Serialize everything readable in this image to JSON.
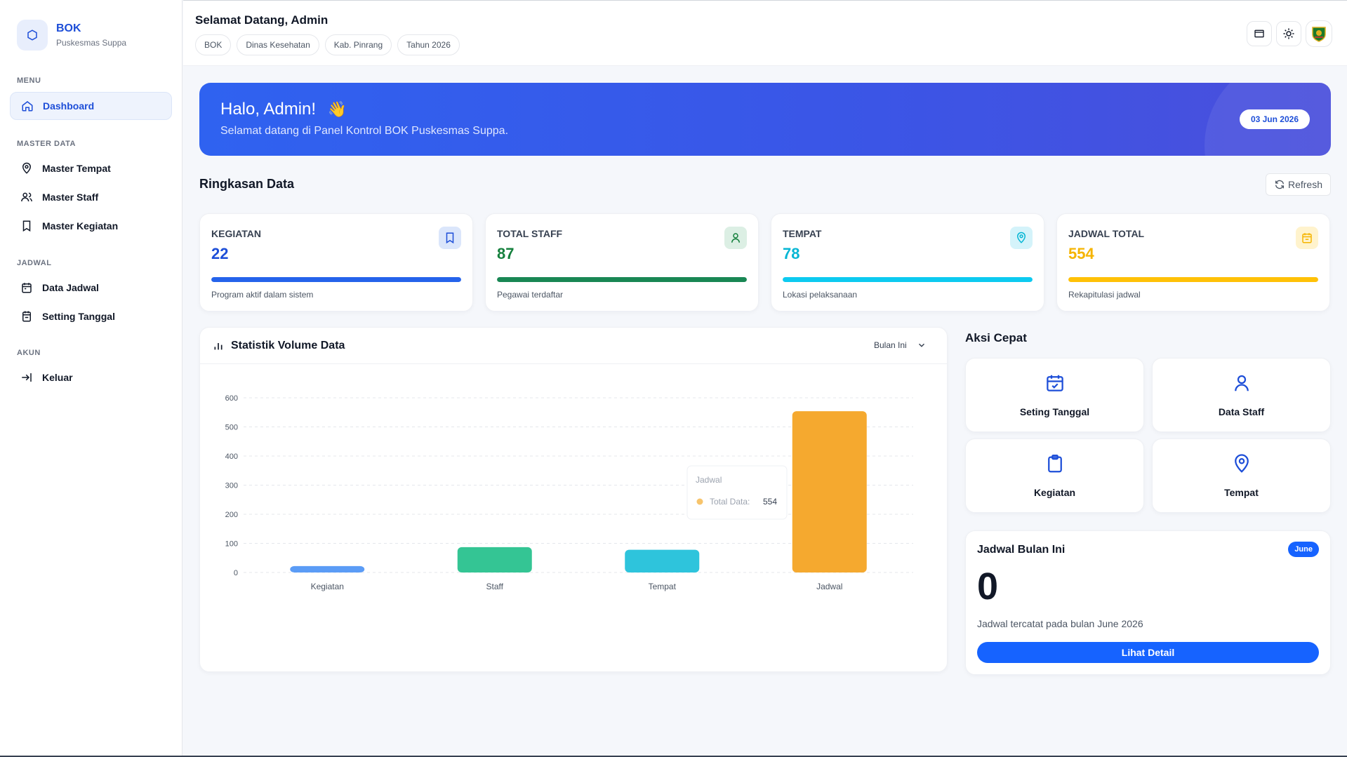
{
  "brand": {
    "title": "BOK",
    "subtitle": "Puskesmas Suppa"
  },
  "sidebar": {
    "sections": {
      "menu": "MENU",
      "master": "MASTER DATA",
      "jadwal": "JADWAL",
      "akun": "AKUN"
    },
    "items": [
      {
        "label": "Dashboard",
        "icon": "home-icon",
        "active": true
      },
      {
        "label": "Master Tempat",
        "icon": "map-pin-icon"
      },
      {
        "label": "Master Staff",
        "icon": "users-icon"
      },
      {
        "label": "Master Kegiatan",
        "icon": "bookmark-icon"
      },
      {
        "label": "Data Jadwal",
        "icon": "calendar-icon"
      },
      {
        "label": "Setting Tanggal",
        "icon": "calendar-check-icon"
      },
      {
        "label": "Keluar",
        "icon": "logout-icon"
      }
    ]
  },
  "header": {
    "greeting": "Selamat Datang, Admin",
    "chips": [
      "BOK",
      "Dinas Kesehatan",
      "Kab. Pinrang",
      "Tahun 2026"
    ]
  },
  "hero": {
    "title": "Halo, Admin!",
    "emoji": "👋",
    "subtitle": "Selamat datang di Panel Kontrol BOK Puskesmas Suppa.",
    "date": "03 Jun 2026",
    "colors": [
      "#2f62f0",
      "#4a4fdc"
    ]
  },
  "summary": {
    "title": "Ringkasan Data",
    "refresh_label": "Refresh",
    "cards": [
      {
        "label": "KEGIATAN",
        "value": "22",
        "desc": "Program aktif dalam sistem",
        "color": "#1d4ed8",
        "bar": "#2563eb",
        "icon_bg": "#dbe6fb",
        "icon": "bookmark-icon",
        "fill": 1.0
      },
      {
        "label": "TOTAL STAFF",
        "value": "87",
        "desc": "Pegawai terdaftar",
        "color": "#15803d",
        "bar": "#198754",
        "icon_bg": "#dcefe4",
        "icon": "user-icon",
        "fill": 1.0
      },
      {
        "label": "TEMPAT",
        "value": "78",
        "desc": "Lokasi pelaksanaan",
        "color": "#06b6d4",
        "bar": "#0dcaf0",
        "icon_bg": "#d4f3fa",
        "icon": "map-pin-icon",
        "fill": 1.0
      },
      {
        "label": "JADWAL TOTAL",
        "value": "554",
        "desc": "Rekapitulasi jadwal",
        "color": "#f5b400",
        "bar": "#ffc107",
        "icon_bg": "#fff3cd",
        "icon": "calendar-icon",
        "fill": 1.0
      }
    ]
  },
  "chart_panel": {
    "title": "Statistik Volume Data",
    "period": "Bulan Ini",
    "tooltip": {
      "title": "Jadwal",
      "label": "Total Data:",
      "value": "554"
    }
  },
  "chart_data": {
    "type": "bar",
    "categories": [
      "Kegiatan",
      "Staff",
      "Tempat",
      "Jadwal"
    ],
    "values": [
      22,
      87,
      78,
      554
    ],
    "colors": [
      "#5b9cf6",
      "#34c594",
      "#2ec4dc",
      "#f5a92f"
    ],
    "ylim": [
      0,
      600
    ],
    "yticks": [
      0,
      100,
      200,
      300,
      400,
      500,
      600
    ],
    "grid": true
  },
  "quick_actions": {
    "title": "Aksi Cepat",
    "items": [
      {
        "label": "Seting Tanggal",
        "icon": "calendar-check-icon"
      },
      {
        "label": "Data Staff",
        "icon": "user-icon"
      },
      {
        "label": "Kegiatan",
        "icon": "clipboard-icon"
      },
      {
        "label": "Tempat",
        "icon": "map-pin-icon"
      }
    ]
  },
  "monthly": {
    "title": "Jadwal Bulan Ini",
    "badge": "June",
    "count": "0",
    "desc": "Jadwal tercatat pada bulan June 2026",
    "button": "Lihat Detail"
  }
}
